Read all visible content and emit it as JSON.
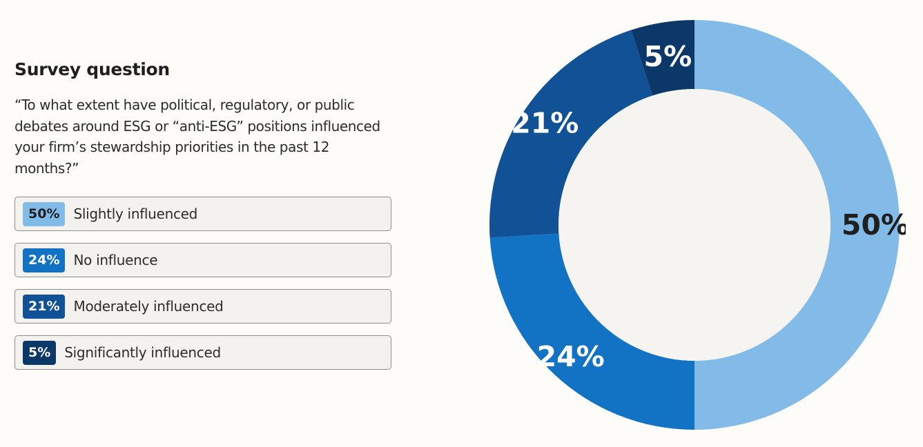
{
  "header": {
    "title": "Survey question",
    "question": "“To what extent have political, regulatory, or public debates around ESG or “anti-ESG” positions influenced your firm’s stewardship priorities in the past 12 months?”"
  },
  "colors": {
    "slightly": "#82bbe8",
    "no_influence": "#1272c4",
    "moderately": "#115196",
    "significantly": "#0b3868",
    "center": "#f5f4f1",
    "dark_text": "#1f1f1f",
    "light_text": "#ffffff"
  },
  "chart_data": {
    "type": "pie",
    "donut": true,
    "start_angle_deg": 90,
    "direction": "clockwise",
    "slices": [
      {
        "label": "Slightly influenced",
        "value": 50,
        "display": "50%",
        "color": "#82bbe8",
        "text_color": "#1f1f1f"
      },
      {
        "label": "No influence",
        "value": 24,
        "display": "24%",
        "color": "#1272c4",
        "text_color": "#ffffff"
      },
      {
        "label": "Moderately influenced",
        "value": 21,
        "display": "21%",
        "color": "#115196",
        "text_color": "#ffffff"
      },
      {
        "label": "Significantly influenced",
        "value": 5,
        "display": "5%",
        "color": "#0b3868",
        "text_color": "#ffffff"
      }
    ]
  }
}
